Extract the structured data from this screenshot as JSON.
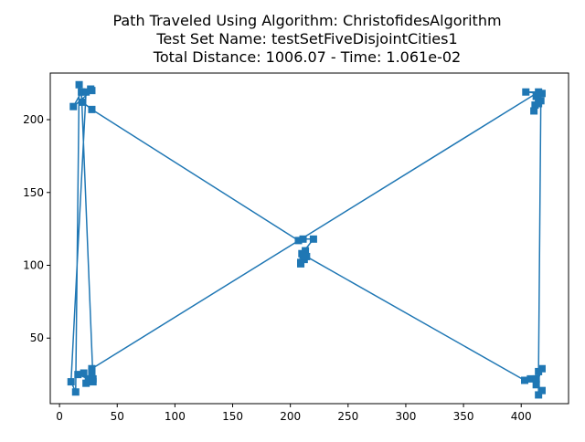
{
  "chart_data": {
    "type": "line",
    "title_lines": [
      "Path Traveled Using Algorithm: ChristofidesAlgorithm",
      "Test Set Name: testSetFiveDisjointCities1",
      "Total Distance: 1006.07 - Time: 1.061e-02"
    ],
    "xlabel": "",
    "ylabel": "",
    "xlim": [
      -8,
      441
    ],
    "ylim": [
      5,
      232
    ],
    "x_ticks": [
      0,
      50,
      100,
      150,
      200,
      250,
      300,
      350,
      400
    ],
    "y_ticks": [
      50,
      100,
      150,
      200
    ],
    "grid": false,
    "legend": "none",
    "marker": "square",
    "color": "#1f77b4",
    "series": [
      {
        "x": [
          28,
          23,
          25,
          16,
          21,
          29,
          29,
          19,
          12,
          28,
          27,
          23,
          10,
          14,
          17,
          20,
          28,
          207,
          211,
          220,
          210,
          213,
          211,
          209,
          212,
          209,
          214,
          403,
          408,
          413,
          418,
          413,
          418,
          415,
          415,
          417,
          413,
          412,
          411,
          415,
          418,
          404,
          415,
          28,
          28
        ],
        "y": [
          27,
          19,
          22,
          25,
          26,
          20,
          22,
          219,
          209,
          220,
          221,
          219,
          20,
          13,
          224,
          212,
          207,
          117,
          118,
          118,
          108,
          110,
          107,
          102,
          104,
          101,
          106,
          21,
          22,
          22,
          29,
          18,
          14,
          11,
          27,
          213,
          216,
          210,
          206,
          211,
          218,
          219,
          219,
          29,
          27
        ]
      }
    ]
  }
}
